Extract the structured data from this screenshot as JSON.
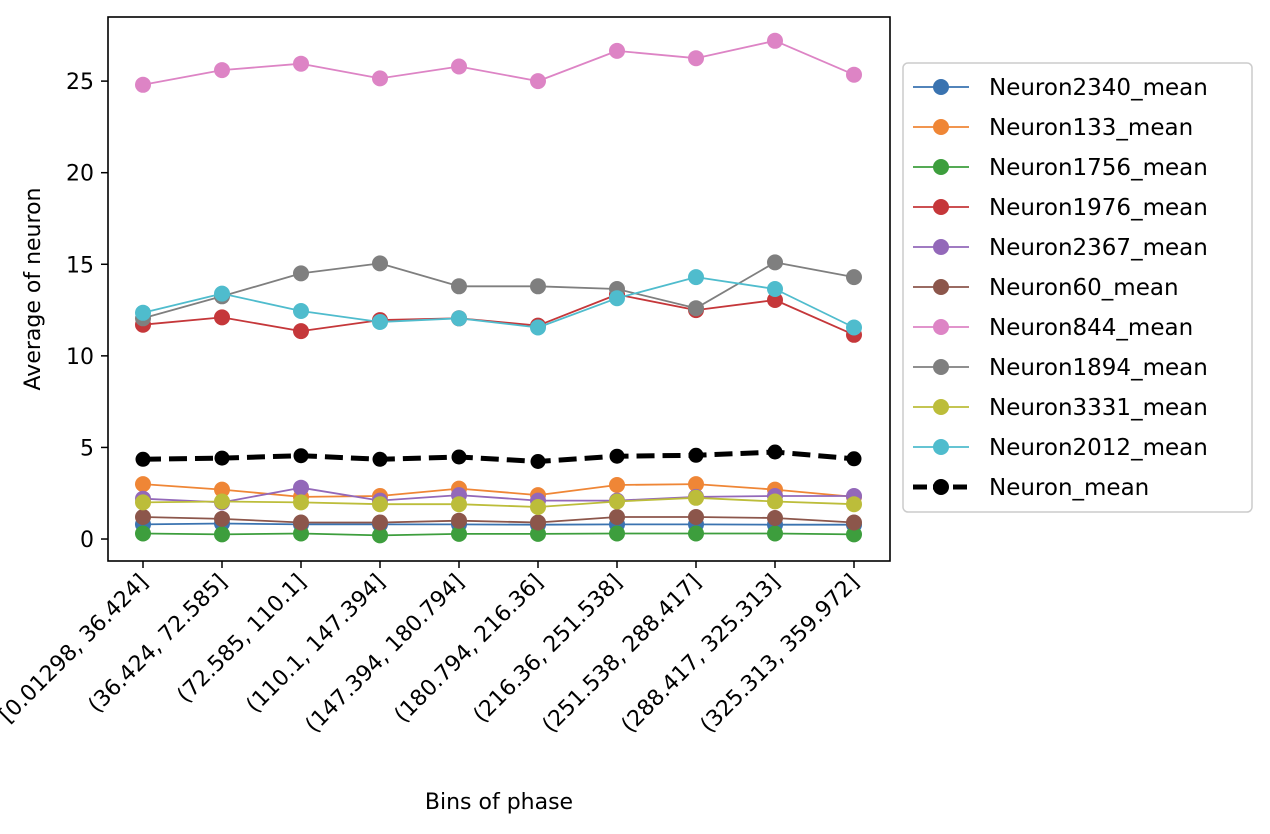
{
  "chart_data": {
    "type": "line",
    "xlabel": "Bins of phase",
    "ylabel": "Average of neuron",
    "categories": [
      "[0.01298, 36.424]",
      "(36.424, 72.585]",
      "(72.585, 110.1]",
      "(110.1, 147.394]",
      "(147.394, 180.794]",
      "(180.794, 216.36]",
      "(216.36, 251.538]",
      "(251.538, 288.417]",
      "(288.417, 325.313]",
      "(325.313, 359.972]"
    ],
    "ylim": [
      -1.2,
      28.5
    ],
    "yticks": [
      0,
      5,
      10,
      15,
      20,
      25
    ],
    "grid": false,
    "legend_position": "outside-right",
    "series": [
      {
        "name": "Neuron2340_mean",
        "color": "#3a73b0",
        "values": [
          0.8,
          0.85,
          0.8,
          0.8,
          0.8,
          0.78,
          0.8,
          0.8,
          0.78,
          0.78
        ]
      },
      {
        "name": "Neuron133_mean",
        "color": "#ef8636",
        "values": [
          3.0,
          2.7,
          2.3,
          2.35,
          2.75,
          2.4,
          2.95,
          3.0,
          2.7,
          2.3
        ]
      },
      {
        "name": "Neuron1756_mean",
        "color": "#3d9e3d",
        "values": [
          0.3,
          0.25,
          0.3,
          0.2,
          0.28,
          0.28,
          0.3,
          0.3,
          0.3,
          0.25
        ]
      },
      {
        "name": "Neuron1976_mean",
        "color": "#c5373a",
        "values": [
          11.7,
          12.1,
          11.35,
          11.95,
          12.05,
          11.65,
          13.35,
          12.5,
          13.05,
          11.15
        ]
      },
      {
        "name": "Neuron2367_mean",
        "color": "#9368b9",
        "values": [
          2.2,
          2.0,
          2.8,
          2.1,
          2.4,
          2.1,
          2.1,
          2.3,
          2.35,
          2.35
        ]
      },
      {
        "name": "Neuron60_mean",
        "color": "#8c564b",
        "values": [
          1.2,
          1.1,
          0.9,
          0.9,
          1.0,
          0.9,
          1.2,
          1.2,
          1.15,
          0.9
        ]
      },
      {
        "name": "Neuron844_mean",
        "color": "#dd84c5",
        "values": [
          24.8,
          25.6,
          25.95,
          25.15,
          25.8,
          25.0,
          26.65,
          26.25,
          27.2,
          25.35
        ]
      },
      {
        "name": "Neuron1894_mean",
        "color": "#7f7f7f",
        "values": [
          12.05,
          13.25,
          14.5,
          15.05,
          13.8,
          13.8,
          13.65,
          12.6,
          15.1,
          14.3
        ]
      },
      {
        "name": "Neuron3331_mean",
        "color": "#bcbd3a",
        "values": [
          2.0,
          2.05,
          2.0,
          1.9,
          1.9,
          1.75,
          2.05,
          2.25,
          2.05,
          1.9
        ]
      },
      {
        "name": "Neuron2012_mean",
        "color": "#4fbccd",
        "values": [
          12.35,
          13.4,
          12.45,
          11.85,
          12.05,
          11.55,
          13.15,
          14.3,
          13.65,
          11.55
        ]
      },
      {
        "name": "Neuron_mean",
        "color": "#000000",
        "dashed": true,
        "values": [
          4.35,
          4.42,
          4.55,
          4.35,
          4.48,
          4.23,
          4.52,
          4.57,
          4.75,
          4.38
        ]
      }
    ]
  }
}
